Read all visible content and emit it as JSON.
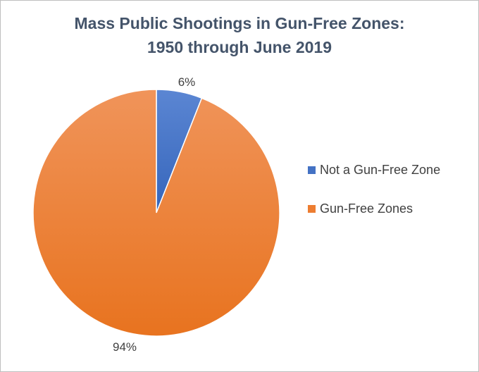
{
  "chart_data": {
    "type": "pie",
    "title_lines": [
      "Mass Public Shootings in Gun-Free Zones:",
      "1950 through June 2019"
    ],
    "slices": [
      {
        "label": "Not a Gun-Free Zone",
        "value": 6,
        "display": "6%",
        "color": "#4472c4"
      },
      {
        "label": "Gun-Free Zones",
        "value": 94,
        "display": "94%",
        "color": "#ed7d31"
      }
    ],
    "legend_position": "right",
    "start_angle": "12 o'clock",
    "direction": "clockwise"
  }
}
